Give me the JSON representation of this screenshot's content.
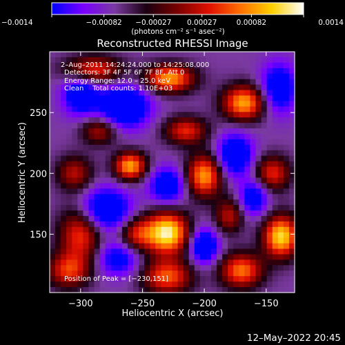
{
  "chart_data": {
    "type": "heatmap",
    "title": "Reconstructed RHESSI Image",
    "xlabel": "Heliocentric X (arcsec)",
    "ylabel": "Heliocentric Y (arcsec)",
    "xlim": [
      -325,
      -127
    ],
    "ylim": [
      102,
      300
    ],
    "x_ticks": [
      -300,
      -250,
      -200,
      -150
    ],
    "x_tick_labels": [
      "−300",
      "−250",
      "−200",
      "−150"
    ],
    "y_ticks": [
      150,
      200,
      250
    ],
    "y_tick_labels": [
      "150",
      "200",
      "250"
    ],
    "colorbar": {
      "min": -0.0014,
      "max": 0.0014,
      "ticks": [
        -0.0014,
        -0.00082,
        -0.00027,
        0.00027,
        0.00082,
        0.0014
      ],
      "tick_labels": [
        "−0.0014",
        "−0.00082",
        "−0.00027",
        "0.00027",
        "0.00082",
        "0.0014"
      ],
      "units": "(photons cm⁻² s⁻¹ asec⁻²)",
      "colormap": [
        "#0000ff",
        "#7a00ff",
        "#7a3aa0",
        "#1a0010",
        "#7a0000",
        "#e01000",
        "#ff7000",
        "#ffd000",
        "#ffffff"
      ]
    },
    "annotations": [
      "2–Aug–2011 14:24:24.000 to 14:25:08.000",
      "Detectors: 3F 4F 5F 6F 7F 8F, Att 0",
      "Energy Range: 12.0 – 25.0 keV",
      "Clean    Total counts: 1.10E+03"
    ],
    "peak_label": "Position of Peak = [−230,151]",
    "peak": {
      "x": -230,
      "y": 151,
      "value": 0.0014
    },
    "image_values_note_free": true,
    "image_sources": [
      {
        "x": -230,
        "y": 151,
        "sx": 12,
        "sy": 12,
        "amp": 1.0
      },
      {
        "x": -138,
        "y": 148,
        "sx": 10,
        "sy": 12,
        "amp": 0.92
      },
      {
        "x": -260,
        "y": 206,
        "sx": 9,
        "sy": 8,
        "amp": 0.8
      },
      {
        "x": -200,
        "y": 198,
        "sx": 10,
        "sy": 12,
        "amp": 0.78
      },
      {
        "x": -168,
        "y": 258,
        "sx": 12,
        "sy": 10,
        "amp": 0.8
      },
      {
        "x": -228,
        "y": 278,
        "sx": 14,
        "sy": 8,
        "amp": 0.78
      },
      {
        "x": -290,
        "y": 285,
        "sx": 16,
        "sy": 8,
        "amp": 0.6
      },
      {
        "x": -300,
        "y": 150,
        "sx": 12,
        "sy": 16,
        "amp": 0.6
      },
      {
        "x": -310,
        "y": 120,
        "sx": 12,
        "sy": 10,
        "amp": 0.55
      },
      {
        "x": -230,
        "y": 115,
        "sx": 14,
        "sy": 10,
        "amp": 0.65
      },
      {
        "x": -170,
        "y": 120,
        "sx": 12,
        "sy": 10,
        "amp": 0.7
      },
      {
        "x": -145,
        "y": 200,
        "sx": 10,
        "sy": 10,
        "amp": 0.55
      },
      {
        "x": -215,
        "y": 235,
        "sx": 12,
        "sy": 8,
        "amp": 0.55
      },
      {
        "x": -285,
        "y": 235,
        "sx": 10,
        "sy": 8,
        "amp": 0.45
      },
      {
        "x": -255,
        "y": 150,
        "sx": 10,
        "sy": 10,
        "amp": 0.5
      },
      {
        "x": -180,
        "y": 165,
        "sx": 8,
        "sy": 10,
        "amp": 0.45
      },
      {
        "x": -305,
        "y": 200,
        "sx": 10,
        "sy": 10,
        "amp": 0.45
      }
    ],
    "image_sinks": [
      {
        "x": -265,
        "y": 255,
        "sx": 14,
        "sy": 12,
        "amp": 0.7
      },
      {
        "x": -280,
        "y": 170,
        "sx": 14,
        "sy": 12,
        "amp": 0.65
      },
      {
        "x": -300,
        "y": 265,
        "sx": 10,
        "sy": 12,
        "amp": 0.55
      },
      {
        "x": -200,
        "y": 140,
        "sx": 8,
        "sy": 10,
        "amp": 0.6
      },
      {
        "x": -175,
        "y": 215,
        "sx": 10,
        "sy": 12,
        "amp": 0.6
      },
      {
        "x": -140,
        "y": 270,
        "sx": 10,
        "sy": 14,
        "amp": 0.55
      },
      {
        "x": -230,
        "y": 190,
        "sx": 10,
        "sy": 10,
        "amp": 0.55
      },
      {
        "x": -160,
        "y": 180,
        "sx": 8,
        "sy": 10,
        "amp": 0.5
      },
      {
        "x": -270,
        "y": 130,
        "sx": 12,
        "sy": 10,
        "amp": 0.45
      }
    ]
  },
  "footer": {
    "timestamp": "12–May–2022 20:45"
  }
}
